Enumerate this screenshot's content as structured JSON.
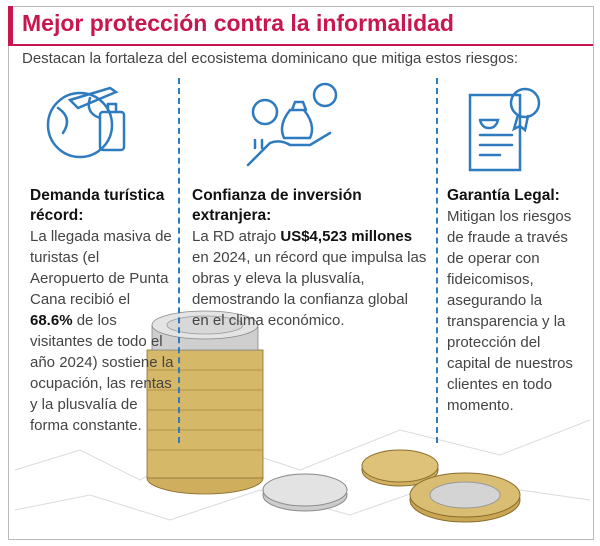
{
  "header": {
    "title": "Mejor protección contra la informalidad",
    "subtitle": "Destacan la fortaleza del ecosistema dominicano que mitiga estos riesgos:"
  },
  "columns": [
    {
      "heading": "Demanda turística récord:",
      "body": [
        {
          "text": "La llegada masiva de turistas (el Aeropuerto de Punta Cana recibió el ",
          "bold": false
        },
        {
          "text": "68.6%",
          "bold": true
        },
        {
          "text": " de los visitantes de todo el año 2024) sostiene la ocupación, las rentas y la plusvalía de forma constante.",
          "bold": false
        }
      ]
    },
    {
      "heading": "Confianza de inversión extranjera:",
      "body": [
        {
          "text": "La RD atrajo ",
          "bold": false
        },
        {
          "text": "US$4,523 millones",
          "bold": true
        },
        {
          "text": " en 2024, un récord que impulsa las obras y eleva la plusvalía, demostrando la confianza global en el clima económico.",
          "bold": false
        }
      ]
    },
    {
      "heading": "Garantía Legal:",
      "body": [
        {
          "text": "Mitigan los riesgos de fraude a través de operar con fideicomisos, asegurando la transparencia y la protección del capital de nuestros clientes en todo momento.",
          "bold": false
        }
      ]
    }
  ]
}
